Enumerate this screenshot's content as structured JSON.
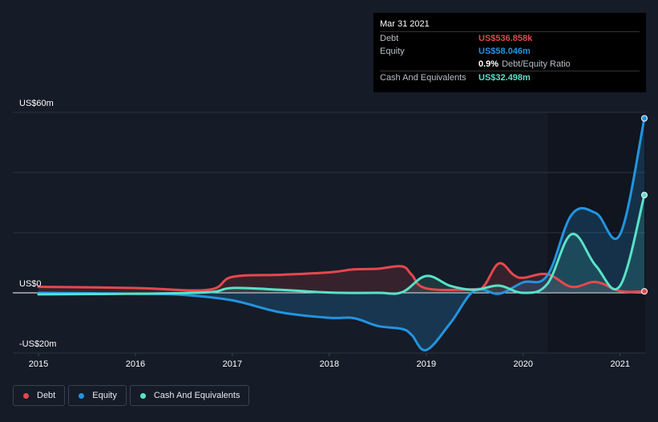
{
  "tooltip": {
    "date": "Mar 31 2021",
    "debt_label": "Debt",
    "debt_value": "US$536.858k",
    "equity_label": "Equity",
    "equity_value": "US$58.046m",
    "ratio_value": "0.9%",
    "ratio_text": "Debt/Equity Ratio",
    "cash_label": "Cash And Equivalents",
    "cash_value": "US$32.498m"
  },
  "legend": {
    "debt": "Debt",
    "equity": "Equity",
    "cash": "Cash And Equivalents"
  },
  "colors": {
    "debt": "#e5484d",
    "equity": "#2394df",
    "cash": "#58e2c8"
  },
  "chart_data": {
    "type": "line",
    "title": "",
    "xlabel": "",
    "ylabel": "",
    "ylim": [
      -20,
      60
    ],
    "xlim": [
      2015,
      2021.25
    ],
    "x_ticks": [
      "2015",
      "2016",
      "2017",
      "2018",
      "2019",
      "2020",
      "2021"
    ],
    "x_tick_values": [
      2015,
      2016,
      2017,
      2018,
      2019,
      2020,
      2021
    ],
    "y_ticks": [
      "US$60m",
      "US$0",
      "-US$20m"
    ],
    "y_tick_values": [
      60,
      0,
      -20
    ],
    "series": [
      {
        "name": "Debt",
        "key": "debt",
        "points": [
          [
            2015,
            2
          ],
          [
            2016,
            1.6
          ],
          [
            2016.75,
            1
          ],
          [
            2017,
            5.3
          ],
          [
            2017.5,
            6
          ],
          [
            2018,
            6.8
          ],
          [
            2018.25,
            7.8
          ],
          [
            2018.5,
            8
          ],
          [
            2018.75,
            8.8
          ],
          [
            2018.85,
            6
          ],
          [
            2019,
            1.5
          ],
          [
            2019.5,
            1.2
          ],
          [
            2019.6,
            2.5
          ],
          [
            2019.75,
            9.8
          ],
          [
            2019.9,
            6
          ],
          [
            2020,
            5
          ],
          [
            2020.25,
            6.2
          ],
          [
            2020.5,
            2
          ],
          [
            2020.75,
            3.6
          ],
          [
            2021,
            0.6
          ],
          [
            2021.25,
            0.5
          ]
        ]
      },
      {
        "name": "Equity",
        "key": "equity",
        "points": [
          [
            2015,
            0
          ],
          [
            2016,
            -0.3
          ],
          [
            2016.5,
            -0.7
          ],
          [
            2017,
            -2.5
          ],
          [
            2017.5,
            -6.5
          ],
          [
            2018,
            -8.3
          ],
          [
            2018.25,
            -8.4
          ],
          [
            2018.5,
            -11
          ],
          [
            2018.75,
            -12
          ],
          [
            2018.85,
            -14
          ],
          [
            2019,
            -19
          ],
          [
            2019.25,
            -10
          ],
          [
            2019.5,
            0.8
          ],
          [
            2019.75,
            -0.3
          ],
          [
            2020,
            3.5
          ],
          [
            2020.25,
            5.8
          ],
          [
            2020.5,
            26
          ],
          [
            2020.75,
            26.5
          ],
          [
            2021,
            19.5
          ],
          [
            2021.25,
            58
          ]
        ]
      },
      {
        "name": "Cash And Equivalents",
        "key": "cash",
        "points": [
          [
            2015,
            -0.5
          ],
          [
            2016,
            -0.3
          ],
          [
            2016.75,
            0.2
          ],
          [
            2017,
            1.6
          ],
          [
            2017.5,
            1
          ],
          [
            2018,
            0.1
          ],
          [
            2018.5,
            0
          ],
          [
            2018.75,
            0.2
          ],
          [
            2019,
            5.6
          ],
          [
            2019.25,
            2.3
          ],
          [
            2019.5,
            1
          ],
          [
            2019.75,
            2.4
          ],
          [
            2020,
            0
          ],
          [
            2020.25,
            3
          ],
          [
            2020.5,
            19.5
          ],
          [
            2020.75,
            9
          ],
          [
            2021,
            2.4
          ],
          [
            2021.25,
            32.5
          ]
        ]
      }
    ]
  }
}
